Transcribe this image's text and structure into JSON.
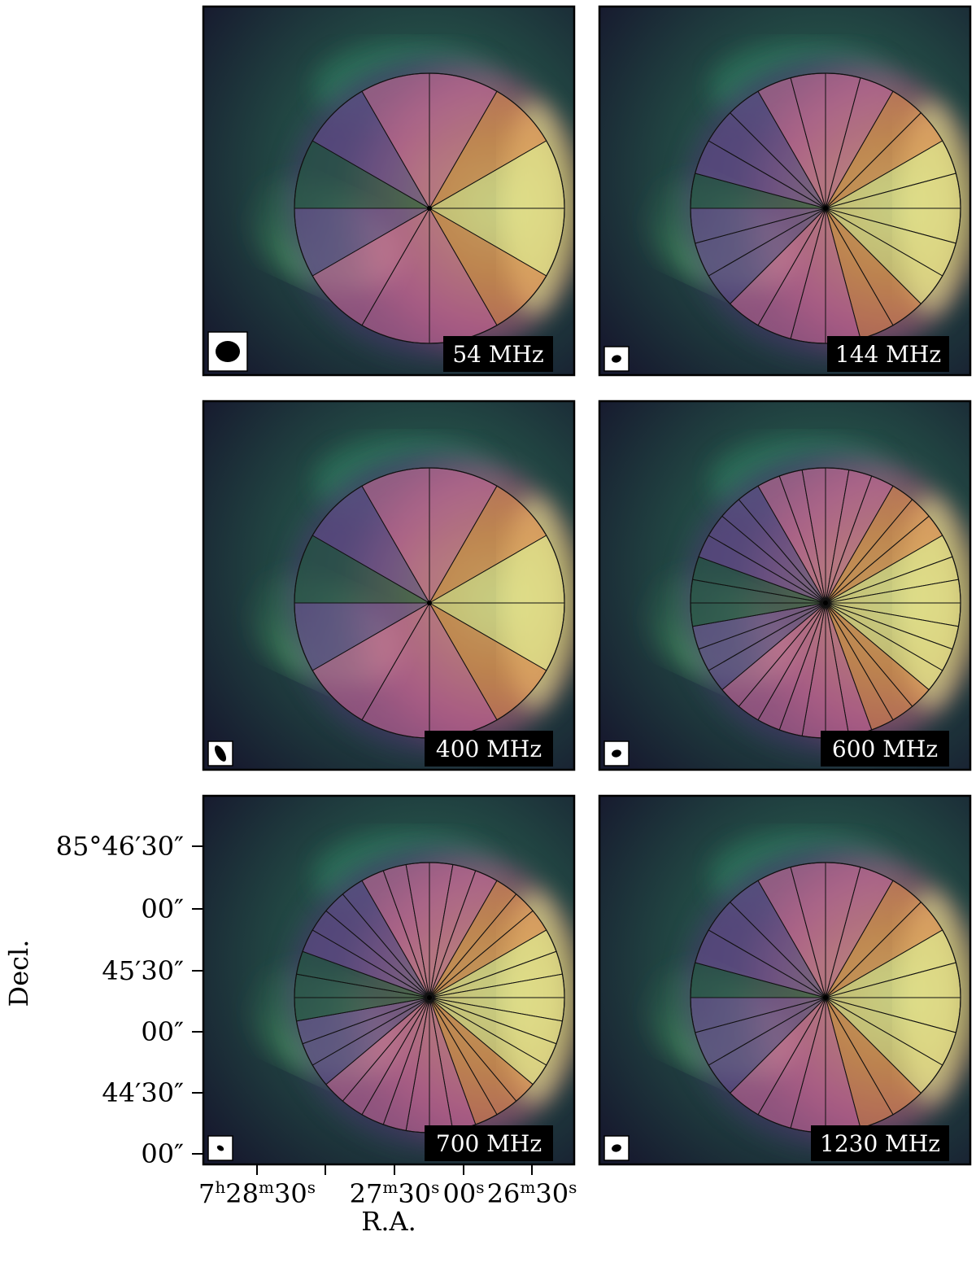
{
  "panels": [
    {
      "id": "p54",
      "frequency_label": "54 MHz",
      "wedges": 12,
      "beam": {
        "shape": "large-circle"
      }
    },
    {
      "id": "p144",
      "frequency_label": "144 MHz",
      "wedges": 24,
      "beam": {
        "shape": "small-ellipse"
      }
    },
    {
      "id": "p400",
      "frequency_label": "400 MHz",
      "wedges": 12,
      "beam": {
        "shape": "elongated-ellipse"
      }
    },
    {
      "id": "p600",
      "frequency_label": "600 MHz",
      "wedges": 36,
      "beam": {
        "shape": "small-ellipse"
      }
    },
    {
      "id": "p700",
      "frequency_label": "700 MHz",
      "wedges": 36,
      "beam": {
        "shape": "tiny-ellipse"
      }
    },
    {
      "id": "p1230",
      "frequency_label": "1230 MHz",
      "wedges": 24,
      "beam": {
        "shape": "small-ellipse"
      }
    }
  ],
  "axes": {
    "ylabel": "Decl.",
    "xlabel": "R.A.",
    "dec_ticks": [
      {
        "deg": "85",
        "min": "46",
        "sec": "30"
      },
      {
        "sec": "00"
      },
      {
        "min": "45",
        "sec": "30"
      },
      {
        "sec": "00"
      },
      {
        "min": "44",
        "sec": "30"
      },
      {
        "sec": "00"
      }
    ],
    "ra_ticks": [
      {
        "h": "7",
        "m": "28",
        "s": "30"
      },
      {
        "m": "27",
        "s": "30"
      },
      {
        "s": "00"
      },
      {
        "m": "26",
        "s": "30"
      }
    ]
  },
  "colors": {
    "background": "#1b1d33",
    "emission_low": "#2f7a5f",
    "emission_mid": "#6fcf6a",
    "emission_high": "#f3f29a",
    "wedge_pink": "#d56a9a",
    "wedge_orange": "#e98a4a",
    "wedge_yellow": "#f1ea8a",
    "wedge_purple": "#6a4d8f",
    "wedge_green": "#1f5a3a"
  }
}
